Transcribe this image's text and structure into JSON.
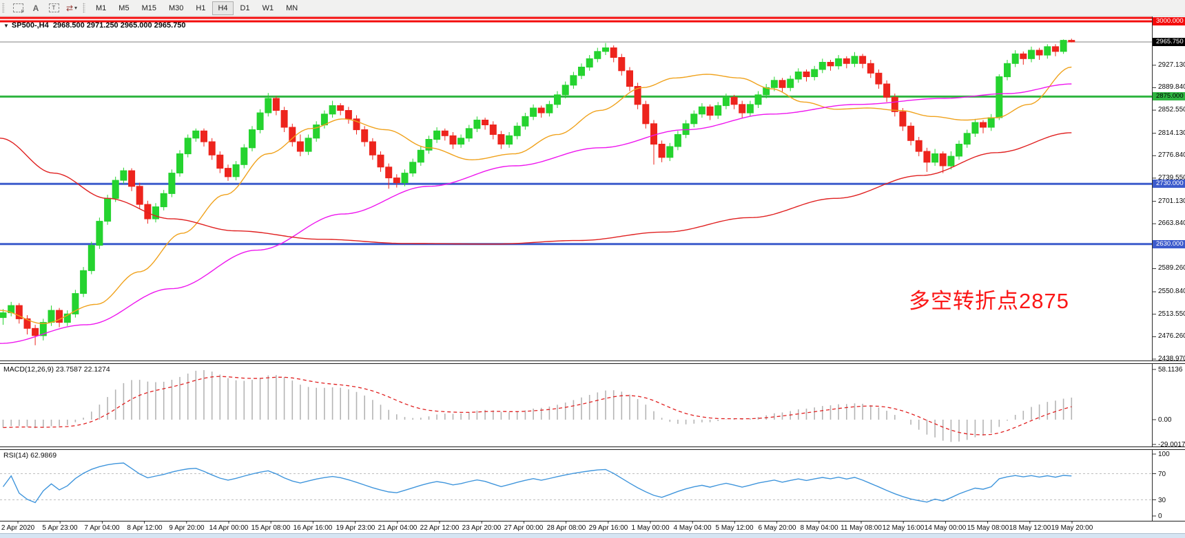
{
  "toolbar": {
    "tools": [
      {
        "id": "frame-f-tool",
        "glyph": "",
        "sub": "F"
      },
      {
        "id": "font-tool",
        "glyph": "A",
        "sub": ""
      },
      {
        "id": "text-label-tool",
        "glyph": "T",
        "sub": ""
      },
      {
        "id": "cycle-arrows-tool",
        "glyph": "⇄",
        "sub": "▾"
      }
    ],
    "timeframes": [
      "M1",
      "M5",
      "M15",
      "M30",
      "H1",
      "H4",
      "D1",
      "W1",
      "MN"
    ],
    "active_timeframe": "H4"
  },
  "chart": {
    "expand_icon": "▼",
    "symbol": "SP500-,H4",
    "ohlc_readout": "2968.500 2971.250 2965.000 2965.750",
    "annotation": {
      "text": "多空转折点2875",
      "color": "#fb1616"
    },
    "macd_label": {
      "name": "MACD(12,26,9)",
      "value1": "23.7587",
      "value2": "22.1274"
    },
    "rsi_label": {
      "name": "RSI(14)",
      "value": "62.9869"
    },
    "price_scale_labels": [
      "2927.130",
      "2889.840",
      "2852.550",
      "2814.130",
      "2776.840",
      "2739.550",
      "2701.130",
      "2663.840",
      "2626.550",
      "2589.260",
      "2550.840",
      "2513.550",
      "2476.260",
      "2438.970"
    ],
    "badges": [
      {
        "text": "3000.000",
        "price": 3000,
        "bg": "#f30b0b",
        "fg": "#ffffff"
      },
      {
        "text": "2965.750",
        "price": 2965.75,
        "bg": "#000000",
        "fg": "#ffffff"
      },
      {
        "text": "2875.000",
        "price": 2875,
        "bg": "#2eb440",
        "fg": "#000000"
      },
      {
        "text": "2730.000",
        "price": 2730,
        "bg": "#3c5bcc",
        "fg": "#ffffff"
      },
      {
        "text": "2630.000",
        "price": 2630,
        "bg": "#3c5bcc",
        "fg": "#ffffff"
      }
    ],
    "macd_scale": [
      "58.1136",
      "0.00",
      "-29.0017"
    ],
    "rsi_scale": [
      "100",
      "70",
      "30",
      "0"
    ]
  },
  "chart_data": {
    "type": "candlestick",
    "symbol": "SP500-",
    "timeframe": "H4",
    "current_price": 2965.75,
    "up_color": "#25d32f",
    "down_color": "#ed241d",
    "time_labels": [
      "2 Apr 2020",
      "5 Apr 23:00",
      "7 Apr 04:00",
      "8 Apr 12:00",
      "9 Apr 20:00",
      "14 Apr 00:00",
      "15 Apr 08:00",
      "16 Apr 16:00",
      "19 Apr 23:00",
      "21 Apr 04:00",
      "22 Apr 12:00",
      "23 Apr 20:00",
      "27 Apr 00:00",
      "28 Apr 08:00",
      "29 Apr 16:00",
      "1 May 00:00",
      "4 May 04:00",
      "5 May 12:00",
      "6 May 20:00",
      "8 May 04:00",
      "11 May 08:00",
      "12 May 16:00",
      "14 May 00:00",
      "15 May 08:00",
      "18 May 12:00",
      "19 May 20:00"
    ],
    "levels": [
      {
        "price": 3000,
        "color": "#f30b0b",
        "width": 3,
        "label": "3000.000"
      },
      {
        "price": 2965.75,
        "color": "#808080",
        "width": 1,
        "label": "2965.750"
      },
      {
        "price": 2875,
        "color": "#2eb440",
        "width": 3,
        "label": "2875.000"
      },
      {
        "price": 2730,
        "color": "#3c5bcc",
        "width": 3,
        "label": "2730.000"
      },
      {
        "price": 2630,
        "color": "#3c5bcc",
        "width": 3,
        "label": "2630.000"
      }
    ],
    "candles": [
      [
        2508,
        2522,
        2496,
        2516
      ],
      [
        2516,
        2534,
        2510,
        2528
      ],
      [
        2528,
        2532,
        2498,
        2506
      ],
      [
        2506,
        2512,
        2480,
        2490
      ],
      [
        2490,
        2496,
        2462,
        2478
      ],
      [
        2478,
        2506,
        2470,
        2500
      ],
      [
        2500,
        2528,
        2494,
        2520
      ],
      [
        2520,
        2524,
        2492,
        2500
      ],
      [
        2500,
        2520,
        2494,
        2514
      ],
      [
        2514,
        2554,
        2508,
        2548
      ],
      [
        2548,
        2592,
        2542,
        2586
      ],
      [
        2586,
        2634,
        2580,
        2628
      ],
      [
        2628,
        2674,
        2622,
        2668
      ],
      [
        2668,
        2712,
        2662,
        2706
      ],
      [
        2706,
        2742,
        2700,
        2736
      ],
      [
        2736,
        2757,
        2730,
        2752
      ],
      [
        2752,
        2756,
        2718,
        2726
      ],
      [
        2726,
        2732,
        2688,
        2696
      ],
      [
        2696,
        2702,
        2664,
        2672
      ],
      [
        2672,
        2698,
        2666,
        2692
      ],
      [
        2692,
        2720,
        2686,
        2714
      ],
      [
        2714,
        2754,
        2708,
        2748
      ],
      [
        2748,
        2786,
        2742,
        2780
      ],
      [
        2780,
        2812,
        2774,
        2806
      ],
      [
        2806,
        2822,
        2800,
        2818
      ],
      [
        2818,
        2822,
        2792,
        2800
      ],
      [
        2800,
        2806,
        2770,
        2778
      ],
      [
        2778,
        2784,
        2748,
        2756
      ],
      [
        2756,
        2762,
        2735,
        2742
      ],
      [
        2742,
        2768,
        2736,
        2762
      ],
      [
        2762,
        2796,
        2756,
        2790
      ],
      [
        2790,
        2826,
        2784,
        2820
      ],
      [
        2820,
        2854,
        2814,
        2848
      ],
      [
        2848,
        2881,
        2842,
        2872
      ],
      [
        2872,
        2876,
        2844,
        2852
      ],
      [
        2852,
        2858,
        2816,
        2824
      ],
      [
        2824,
        2830,
        2792,
        2800
      ],
      [
        2800,
        2812,
        2776,
        2784
      ],
      [
        2784,
        2812,
        2778,
        2806
      ],
      [
        2806,
        2834,
        2800,
        2828
      ],
      [
        2828,
        2852,
        2822,
        2846
      ],
      [
        2846,
        2868,
        2840,
        2860
      ],
      [
        2860,
        2864,
        2844,
        2852
      ],
      [
        2852,
        2858,
        2830,
        2838
      ],
      [
        2838,
        2844,
        2812,
        2820
      ],
      [
        2820,
        2826,
        2792,
        2800
      ],
      [
        2800,
        2806,
        2770,
        2778
      ],
      [
        2778,
        2784,
        2750,
        2758
      ],
      [
        2758,
        2764,
        2722,
        2740
      ],
      [
        2740,
        2746,
        2724,
        2732
      ],
      [
        2732,
        2754,
        2726,
        2748
      ],
      [
        2748,
        2772,
        2742,
        2766
      ],
      [
        2766,
        2792,
        2760,
        2786
      ],
      [
        2786,
        2810,
        2780,
        2804
      ],
      [
        2804,
        2824,
        2798,
        2818
      ],
      [
        2818,
        2822,
        2802,
        2810
      ],
      [
        2810,
        2816,
        2788,
        2796
      ],
      [
        2796,
        2812,
        2790,
        2806
      ],
      [
        2806,
        2828,
        2800,
        2822
      ],
      [
        2822,
        2842,
        2816,
        2836
      ],
      [
        2836,
        2840,
        2820,
        2828
      ],
      [
        2828,
        2834,
        2804,
        2812
      ],
      [
        2812,
        2818,
        2788,
        2796
      ],
      [
        2796,
        2816,
        2790,
        2810
      ],
      [
        2810,
        2832,
        2804,
        2826
      ],
      [
        2826,
        2848,
        2820,
        2842
      ],
      [
        2842,
        2862,
        2836,
        2856
      ],
      [
        2856,
        2860,
        2840,
        2848
      ],
      [
        2848,
        2868,
        2842,
        2862
      ],
      [
        2862,
        2884,
        2856,
        2878
      ],
      [
        2878,
        2900,
        2872,
        2894
      ],
      [
        2894,
        2916,
        2888,
        2910
      ],
      [
        2910,
        2930,
        2904,
        2924
      ],
      [
        2924,
        2944,
        2918,
        2938
      ],
      [
        2938,
        2956,
        2932,
        2950
      ],
      [
        2950,
        2964,
        2944,
        2956
      ],
      [
        2956,
        2960,
        2932,
        2940
      ],
      [
        2940,
        2946,
        2910,
        2918
      ],
      [
        2918,
        2924,
        2884,
        2892
      ],
      [
        2892,
        2898,
        2854,
        2862
      ],
      [
        2862,
        2868,
        2822,
        2830
      ],
      [
        2830,
        2836,
        2762,
        2796
      ],
      [
        2796,
        2802,
        2766,
        2774
      ],
      [
        2774,
        2798,
        2768,
        2792
      ],
      [
        2792,
        2818,
        2786,
        2812
      ],
      [
        2812,
        2836,
        2806,
        2830
      ],
      [
        2830,
        2852,
        2824,
        2846
      ],
      [
        2846,
        2864,
        2840,
        2858
      ],
      [
        2858,
        2862,
        2836,
        2844
      ],
      [
        2844,
        2866,
        2838,
        2860
      ],
      [
        2860,
        2880,
        2854,
        2874
      ],
      [
        2874,
        2878,
        2854,
        2862
      ],
      [
        2862,
        2868,
        2840,
        2848
      ],
      [
        2848,
        2868,
        2842,
        2862
      ],
      [
        2862,
        2884,
        2856,
        2878
      ],
      [
        2878,
        2896,
        2872,
        2890
      ],
      [
        2890,
        2908,
        2884,
        2902
      ],
      [
        2902,
        2906,
        2882,
        2890
      ],
      [
        2890,
        2910,
        2884,
        2904
      ],
      [
        2904,
        2922,
        2898,
        2916
      ],
      [
        2916,
        2920,
        2900,
        2908
      ],
      [
        2908,
        2926,
        2902,
        2920
      ],
      [
        2920,
        2938,
        2914,
        2932
      ],
      [
        2932,
        2936,
        2918,
        2926
      ],
      [
        2926,
        2944,
        2920,
        2938
      ],
      [
        2938,
        2942,
        2922,
        2930
      ],
      [
        2930,
        2949,
        2924,
        2942
      ],
      [
        2942,
        2946,
        2922,
        2930
      ],
      [
        2930,
        2936,
        2906,
        2914
      ],
      [
        2914,
        2920,
        2888,
        2896
      ],
      [
        2896,
        2902,
        2866,
        2874
      ],
      [
        2874,
        2880,
        2842,
        2850
      ],
      [
        2850,
        2856,
        2818,
        2826
      ],
      [
        2826,
        2832,
        2794,
        2802
      ],
      [
        2802,
        2808,
        2776,
        2784
      ],
      [
        2784,
        2790,
        2750,
        2766
      ],
      [
        2766,
        2788,
        2760,
        2780
      ],
      [
        2780,
        2784,
        2748,
        2760
      ],
      [
        2760,
        2784,
        2754,
        2776
      ],
      [
        2776,
        2802,
        2770,
        2796
      ],
      [
        2796,
        2820,
        2790,
        2814
      ],
      [
        2814,
        2838,
        2808,
        2832
      ],
      [
        2832,
        2836,
        2814,
        2824
      ],
      [
        2824,
        2846,
        2818,
        2840
      ],
      [
        2840,
        2912,
        2836,
        2908
      ],
      [
        2908,
        2936,
        2902,
        2930
      ],
      [
        2930,
        2952,
        2924,
        2946
      ],
      [
        2946,
        2950,
        2928,
        2938
      ],
      [
        2938,
        2958,
        2932,
        2952
      ],
      [
        2952,
        2956,
        2936,
        2944
      ],
      [
        2944,
        2962,
        2938,
        2958
      ],
      [
        2958,
        2962,
        2942,
        2950
      ],
      [
        2950,
        2970,
        2946,
        2968.5
      ],
      [
        2968.5,
        2971.25,
        2965,
        2965.75
      ]
    ],
    "ma_lines": [
      {
        "name": "ma-fast-orange",
        "color": "#f0a21c",
        "points": [
          [
            0,
            2520
          ],
          [
            0.04,
            2498
          ],
          [
            0.09,
            2530
          ],
          [
            0.13,
            2584
          ],
          [
            0.17,
            2648
          ],
          [
            0.21,
            2712
          ],
          [
            0.25,
            2780
          ],
          [
            0.29,
            2822
          ],
          [
            0.32,
            2838
          ],
          [
            0.36,
            2820
          ],
          [
            0.4,
            2790
          ],
          [
            0.44,
            2770
          ],
          [
            0.48,
            2780
          ],
          [
            0.52,
            2812
          ],
          [
            0.56,
            2852
          ],
          [
            0.6,
            2890
          ],
          [
            0.63,
            2906
          ],
          [
            0.66,
            2912
          ],
          [
            0.69,
            2906
          ],
          [
            0.72,
            2888
          ],
          [
            0.75,
            2866
          ],
          [
            0.78,
            2854
          ],
          [
            0.81,
            2856
          ],
          [
            0.84,
            2852
          ],
          [
            0.87,
            2842
          ],
          [
            0.9,
            2836
          ],
          [
            0.93,
            2840
          ],
          [
            0.96,
            2862
          ],
          [
            1,
            2924
          ]
        ]
      },
      {
        "name": "ma-mid-magenta",
        "color": "#ee15ee",
        "points": [
          [
            0,
            2465
          ],
          [
            0.08,
            2496
          ],
          [
            0.16,
            2556
          ],
          [
            0.24,
            2620
          ],
          [
            0.32,
            2680
          ],
          [
            0.4,
            2726
          ],
          [
            0.48,
            2760
          ],
          [
            0.56,
            2790
          ],
          [
            0.64,
            2820
          ],
          [
            0.72,
            2846
          ],
          [
            0.8,
            2862
          ],
          [
            0.88,
            2872
          ],
          [
            0.94,
            2880
          ],
          [
            1,
            2896
          ]
        ]
      },
      {
        "name": "ma-slow-red",
        "color": "#e02020",
        "points": [
          [
            0,
            2806
          ],
          [
            0.05,
            2748
          ],
          [
            0.1,
            2706
          ],
          [
            0.16,
            2672
          ],
          [
            0.22,
            2652
          ],
          [
            0.3,
            2638
          ],
          [
            0.38,
            2631
          ],
          [
            0.46,
            2630
          ],
          [
            0.54,
            2636
          ],
          [
            0.62,
            2650
          ],
          [
            0.7,
            2674
          ],
          [
            0.78,
            2706
          ],
          [
            0.86,
            2744
          ],
          [
            0.93,
            2782
          ],
          [
            1,
            2815
          ]
        ]
      }
    ],
    "macd": {
      "fast": 12,
      "slow": 26,
      "signal": 9,
      "hist_color": "#b4b4b4",
      "signal_color": "#e02020",
      "axis": [
        58.1136,
        0,
        -29.0017
      ],
      "current_macd": 23.7587,
      "current_signal": 22.1274
    },
    "rsi": {
      "period": 14,
      "color": "#3f95dc",
      "levels": [
        70,
        30
      ],
      "axis": [
        100,
        70,
        30,
        0
      ],
      "current": 62.9869
    }
  }
}
